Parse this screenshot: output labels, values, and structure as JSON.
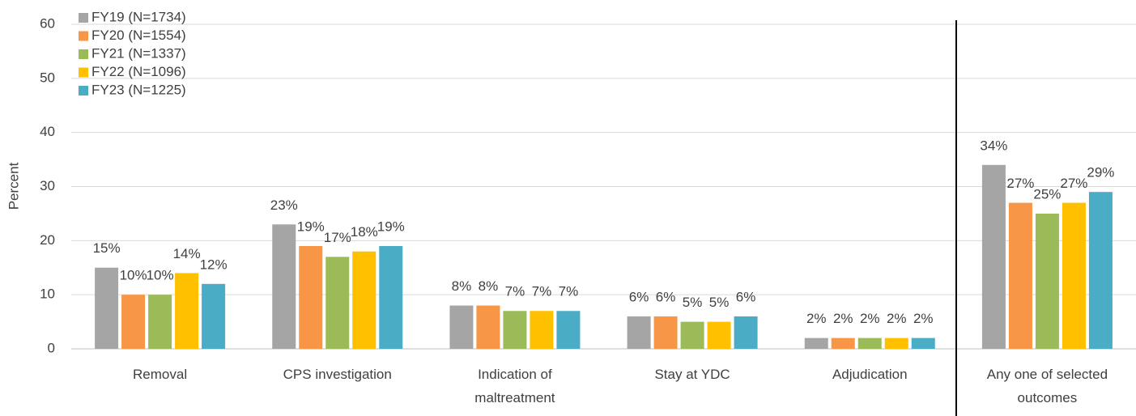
{
  "chart_data": {
    "type": "bar",
    "y_label": "Percent",
    "categories": [
      "Removal",
      "CPS investigation",
      "Indication of maltreatment",
      "Stay at YDC",
      "Adjudication",
      "Any one of selected outcomes"
    ],
    "series": [
      {
        "name": "FY19 (N=1734)",
        "color": "#a5a5a5",
        "values": [
          15,
          23,
          8,
          6,
          2,
          34
        ],
        "value_labels": [
          "15%",
          "23%",
          "8%",
          "6%",
          "2%",
          "34%"
        ]
      },
      {
        "name": "FY20 (N=1554)",
        "color": "#f79646",
        "values": [
          10,
          19,
          8,
          6,
          2,
          27
        ],
        "value_labels": [
          "10%",
          "19%",
          "8%",
          "6%",
          "2%",
          "27%"
        ]
      },
      {
        "name": "FY21 (N=1337)",
        "color": "#9bbb59",
        "values": [
          10,
          17,
          7,
          5,
          2,
          25
        ],
        "value_labels": [
          "10%",
          "17%",
          "7%",
          "5%",
          "2%",
          "25%"
        ]
      },
      {
        "name": "FY22 (N=1096)",
        "color": "#ffc000",
        "values": [
          14,
          18,
          7,
          5,
          2,
          27
        ],
        "value_labels": [
          "14%",
          "18%",
          "7%",
          "5%",
          "2%",
          "27%"
        ]
      },
      {
        "name": "FY23 (N=1225)",
        "color": "#4bacc6",
        "values": [
          12,
          19,
          7,
          6,
          2,
          29
        ],
        "value_labels": [
          "12%",
          "19%",
          "7%",
          "6%",
          "2%",
          "29%"
        ]
      }
    ],
    "ylim": [
      0,
      60
    ],
    "yticks": [
      0,
      10,
      20,
      30,
      40,
      50,
      60
    ],
    "grid": true,
    "legend": "top-left"
  }
}
